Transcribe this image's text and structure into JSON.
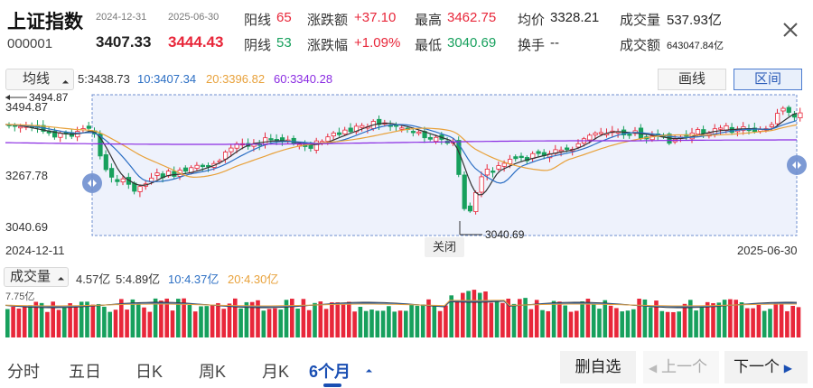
{
  "header": {
    "name": "上证指数",
    "code": "000001",
    "start_date": "2024-12-31",
    "end_date": "2025-06-30",
    "start_price": "3407.33",
    "end_price": "3444.43",
    "stats": {
      "yang_label": "阳线",
      "yang_value": "65",
      "yin_label": "阴线",
      "yin_value": "53",
      "change_amt_label": "涨跌额",
      "change_amt_value": "+37.10",
      "change_pct_label": "涨跌幅",
      "change_pct_value": "+1.09%",
      "high_label": "最高",
      "high_value": "3462.75",
      "low_label": "最低",
      "low_value": "3040.69",
      "avg_label": "均价",
      "avg_value": "3328.21",
      "turnover_label": "换手",
      "turnover_value": "--",
      "volume_label": "成交量",
      "volume_value": "537.93亿",
      "amount_label": "成交额",
      "amount_value": "643047.84亿"
    }
  },
  "ma_bar": {
    "selector_label": "均线",
    "ma5": "5:3438.73",
    "ma10": "10:3407.34",
    "ma20": "20:3396.82",
    "ma60": "60:3340.28",
    "draw_label": "画线",
    "range_label": "区间"
  },
  "chart": {
    "y_top": "3494.87",
    "y_mid": "3267.78",
    "y_bottom": "3040.69",
    "max_marker": "3494.87",
    "min_marker": "3040.69",
    "x_start": "2024-12-11",
    "x_end": "2025-06-30",
    "close_range_label": "关闭"
  },
  "volume_bar": {
    "selector_label": "成交量",
    "current": "4.57亿",
    "ma5": "5:4.89亿",
    "ma10": "10:4.37亿",
    "ma20": "20:4.30亿",
    "y_top": "7.75亿"
  },
  "tabs": [
    "分时",
    "五日",
    "日K",
    "周K",
    "月K",
    "6个月"
  ],
  "actions": {
    "delete_fav": "删自选",
    "prev": "上一个",
    "next": "下一个"
  },
  "colors": {
    "up": "#e8273a",
    "down": "#17a05d",
    "ma5": "#333333",
    "ma10": "#2c6fc4",
    "ma20": "#e8a13a",
    "ma60": "#8a2be2",
    "range_fill": "#eef2fc",
    "range_border": "#6f8fcf"
  }
}
